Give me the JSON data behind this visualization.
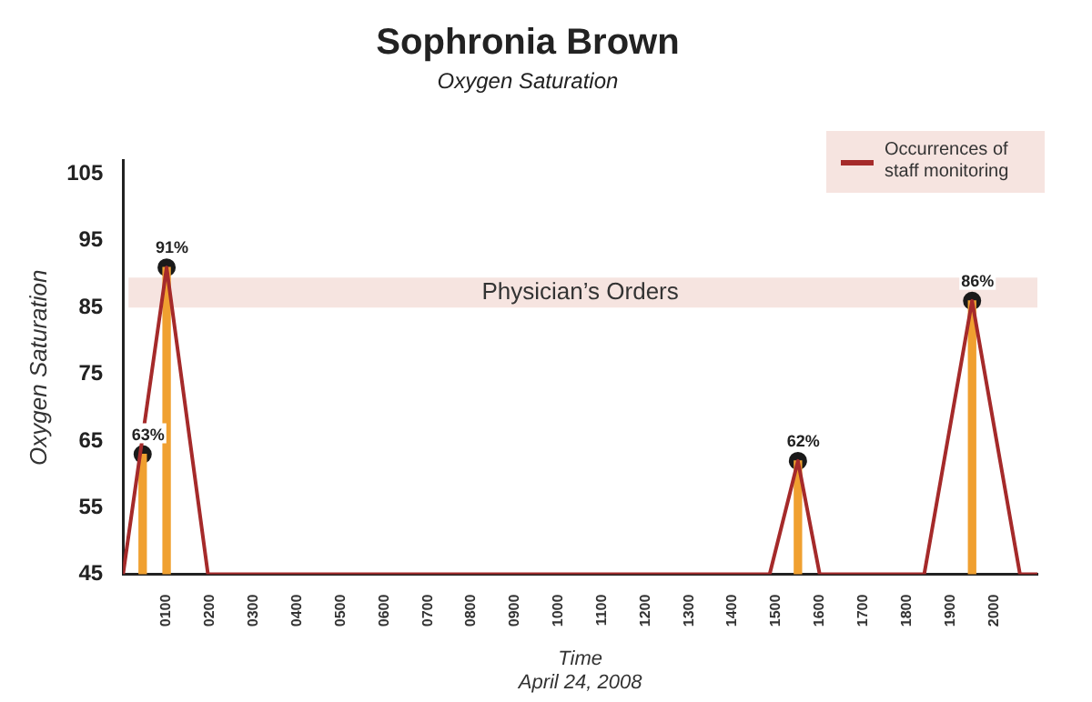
{
  "chart_data": {
    "type": "line",
    "title": "Sophronia Brown",
    "subtitle": "Oxygen Saturation",
    "xlabel": "Time",
    "ylabel": "Oxygen Saturation",
    "annotations": [
      "April 24, 2008"
    ],
    "xlim": [
      0,
      2100
    ],
    "xticks": [
      {
        "value": 100,
        "label": "0100"
      },
      {
        "value": 200,
        "label": "0200"
      },
      {
        "value": 300,
        "label": "0300"
      },
      {
        "value": 400,
        "label": "0400"
      },
      {
        "value": 500,
        "label": "0500"
      },
      {
        "value": 600,
        "label": "0600"
      },
      {
        "value": 700,
        "label": "0700"
      },
      {
        "value": 800,
        "label": "0800"
      },
      {
        "value": 900,
        "label": "0900"
      },
      {
        "value": 1000,
        "label": "1000"
      },
      {
        "value": 1100,
        "label": "1100"
      },
      {
        "value": 1200,
        "label": "1200"
      },
      {
        "value": 1300,
        "label": "1300"
      },
      {
        "value": 1400,
        "label": "1400"
      },
      {
        "value": 1500,
        "label": "1500"
      },
      {
        "value": 1600,
        "label": "1600"
      },
      {
        "value": 1700,
        "label": "1700"
      },
      {
        "value": 1800,
        "label": "1800"
      },
      {
        "value": 1900,
        "label": "1900"
      },
      {
        "value": 2000,
        "label": "2000"
      }
    ],
    "ylim": [
      45,
      107
    ],
    "yticks": [
      45,
      55,
      65,
      75,
      85,
      95,
      105
    ],
    "grid": false,
    "legend": "top right",
    "bands": [
      {
        "axis": "y",
        "from": 85,
        "to": 89.5,
        "label": "Physician’s Orders",
        "color": "#f6e4e0"
      }
    ],
    "series": [
      {
        "name": "Occurrences of staff monitoring",
        "color": "#a52a2a",
        "marker": "none",
        "x": [
          0,
          100,
          195,
          1485,
          1550,
          1600,
          1840,
          1950,
          2060,
          2100
        ],
        "values": [
          45,
          91,
          45,
          45,
          62,
          45,
          45,
          86,
          45,
          45
        ]
      },
      {
        "type": "bar",
        "color": "#f0a030",
        "x": [
          45,
          100,
          1550,
          1950
        ],
        "values": [
          63,
          91,
          62,
          86
        ]
      },
      {
        "type": "scatter",
        "color": "#1a1a1a",
        "marker": "circle",
        "x": [
          45,
          100,
          1550,
          1950
        ],
        "values": [
          63,
          91,
          62,
          86
        ],
        "value_labels": [
          "63%",
          "91%",
          "62%",
          "86%"
        ]
      }
    ]
  }
}
